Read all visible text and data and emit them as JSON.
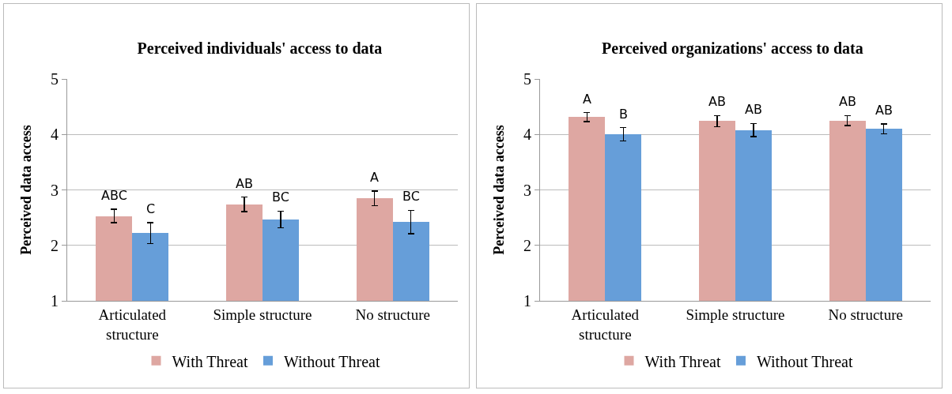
{
  "chart_data": [
    {
      "type": "bar",
      "title": "Perceived individuals' access to data",
      "ylabel": "Perceived data access",
      "categories": [
        "Articulated structure",
        "Simple structure",
        "No structure"
      ],
      "series": [
        {
          "name": "With Threat",
          "color": "#dea7a2",
          "values": [
            2.53,
            2.74,
            2.85
          ],
          "errors": [
            0.12,
            0.13,
            0.13
          ],
          "value_labels": [
            "ABC",
            "AB",
            "A"
          ]
        },
        {
          "name": "Without Threat",
          "color": "#669ed9",
          "values": [
            2.22,
            2.47,
            2.42
          ],
          "errors": [
            0.19,
            0.15,
            0.21
          ],
          "value_labels": [
            "C",
            "BC",
            "BC"
          ]
        }
      ],
      "ylim": [
        1,
        5
      ],
      "yticks": [
        1,
        2,
        3,
        4,
        5
      ],
      "grid": "y",
      "legend": "bottom"
    },
    {
      "type": "bar",
      "title": "Perceived organizations' access to data",
      "ylabel": "Perceived data access",
      "categories": [
        "Articulated structure",
        "Simple structure",
        "No structure"
      ],
      "series": [
        {
          "name": "With Threat",
          "color": "#dea7a2",
          "values": [
            4.31,
            4.24,
            4.25
          ],
          "errors": [
            0.08,
            0.1,
            0.09
          ],
          "value_labels": [
            "A",
            "AB",
            "AB"
          ]
        },
        {
          "name": "Without Threat",
          "color": "#669ed9",
          "values": [
            4.0,
            4.08,
            4.1
          ],
          "errors": [
            0.12,
            0.12,
            0.09
          ],
          "value_labels": [
            "B",
            "AB",
            "AB"
          ]
        }
      ],
      "ylim": [
        1,
        5
      ],
      "yticks": [
        1,
        2,
        3,
        4,
        5
      ],
      "grid": "y",
      "legend": "bottom"
    }
  ]
}
